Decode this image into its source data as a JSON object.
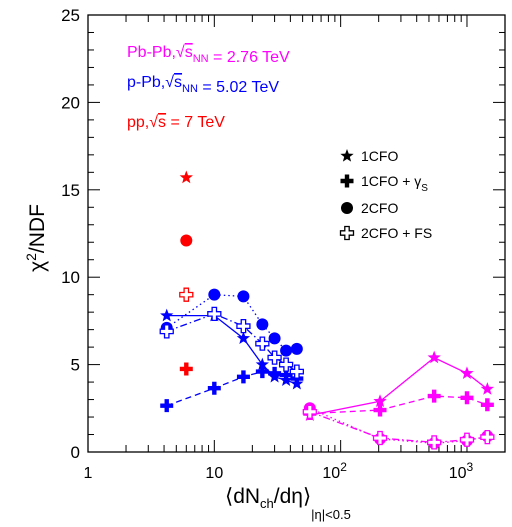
{
  "chart_data": {
    "type": "scatter",
    "xscale": "log",
    "xlim": [
      1,
      2000
    ],
    "ylim": [
      0,
      25
    ],
    "xticks": [
      {
        "value": 1,
        "label": "1"
      },
      {
        "value": 10,
        "label": "10"
      },
      {
        "value": 100,
        "label": "10",
        "exp": "2"
      },
      {
        "value": 1000,
        "label": "10",
        "exp": "3"
      }
    ],
    "yticks": [
      0,
      5,
      10,
      15,
      20,
      25
    ],
    "ylabel": {
      "main": "χ",
      "sup": "2",
      "rest": "/NDF"
    },
    "xlabel": {
      "open": "⟨dN",
      "sub1": "ch",
      "mid": "/dη⟩",
      "sub2": "|η|<0.5"
    },
    "systems": [
      {
        "key": "pbpb",
        "color": "#ff00ff",
        "text": "Pb-Pb,",
        "sqrt": "√",
        "s": "s",
        "sub": "NN",
        "energy": " = 2.76 TeV"
      },
      {
        "key": "ppb",
        "color": "#0000ff",
        "text": "p-Pb,",
        "sqrt": "√",
        "s": "s",
        "sub": "NN",
        "energy": " = 5.02 TeV"
      },
      {
        "key": "pp",
        "color": "#ff0000",
        "text": "pp,",
        "sqrt": "√",
        "s": "s",
        "sub": "",
        "energy": " = 7 TeV"
      }
    ],
    "legend": [
      {
        "marker": "star",
        "label": "1CFO",
        "sub": ""
      },
      {
        "marker": "cross",
        "label": "1CFO + γ",
        "sub": "S"
      },
      {
        "marker": "circle",
        "label": "2CFO",
        "sub": ""
      },
      {
        "marker": "opencross",
        "label": "2CFO + FS",
        "sub": ""
      }
    ],
    "series": [
      {
        "system": "pp",
        "model": "1CFO",
        "marker": "star",
        "color": "#ff0000",
        "line": "none",
        "x": [
          6.0
        ],
        "y": [
          15.7
        ]
      },
      {
        "system": "pp",
        "model": "2CFO",
        "marker": "circle",
        "color": "#ff0000",
        "line": "none",
        "x": [
          6.0
        ],
        "y": [
          12.1
        ]
      },
      {
        "system": "pp",
        "model": "2CFO + FS",
        "marker": "opencross",
        "color": "#ff0000",
        "line": "none",
        "x": [
          6.0
        ],
        "y": [
          9.0
        ]
      },
      {
        "system": "pp",
        "model": "1CFO + γS",
        "marker": "cross",
        "color": "#ff0000",
        "line": "none",
        "x": [
          6.0
        ],
        "y": [
          4.75
        ]
      },
      {
        "system": "p-Pb",
        "model": "1CFO",
        "marker": "star",
        "color": "#0000ff",
        "line": "solid",
        "x": [
          4.2,
          10.0,
          17.0,
          24.0,
          30.0,
          37.0,
          45.0
        ],
        "y": [
          7.8,
          7.8,
          6.5,
          5.0,
          4.3,
          4.1,
          3.9
        ]
      },
      {
        "system": "p-Pb",
        "model": "1CFO + γS",
        "marker": "cross",
        "color": "#0000ff",
        "line": "dashed",
        "x": [
          4.2,
          10.0,
          17.0,
          24.0,
          30.0,
          37.0,
          45.0
        ],
        "y": [
          2.65,
          3.65,
          4.3,
          4.6,
          4.5,
          4.4,
          4.2
        ]
      },
      {
        "system": "p-Pb",
        "model": "2CFO",
        "marker": "circle",
        "color": "#0000ff",
        "line": "dotted",
        "x": [
          4.2,
          10.0,
          17.0,
          24.0,
          30.0,
          37.0,
          45.0
        ],
        "y": [
          7.1,
          9.0,
          8.9,
          7.3,
          6.5,
          5.8,
          5.9
        ]
      },
      {
        "system": "p-Pb",
        "model": "2CFO + FS",
        "marker": "opencross",
        "color": "#0000ff",
        "line": "dashdot",
        "x": [
          4.2,
          10.0,
          17.0,
          24.0,
          30.0,
          37.0,
          45.0
        ],
        "y": [
          6.9,
          7.9,
          7.2,
          6.2,
          5.4,
          5.0,
          4.6
        ]
      },
      {
        "system": "Pb-Pb",
        "model": "1CFO",
        "marker": "star",
        "color": "#ff00ff",
        "line": "solid",
        "x": [
          57,
          205,
          550,
          1000,
          1450
        ],
        "y": [
          2.1,
          2.9,
          5.4,
          4.5,
          3.6
        ]
      },
      {
        "system": "Pb-Pb",
        "model": "1CFO + γS",
        "marker": "cross",
        "color": "#ff00ff",
        "line": "dashed",
        "x": [
          57,
          205,
          550,
          1000,
          1450
        ],
        "y": [
          2.2,
          2.4,
          3.2,
          3.1,
          2.7
        ]
      },
      {
        "system": "Pb-Pb",
        "model": "2CFO",
        "marker": "circle",
        "color": "#ff00ff",
        "line": "dotted",
        "x": [
          57,
          205,
          550,
          1000,
          1450
        ],
        "y": [
          2.5,
          0.75,
          0.5,
          0.65,
          0.9
        ]
      },
      {
        "system": "Pb-Pb",
        "model": "2CFO + FS",
        "marker": "opencross",
        "color": "#ff00ff",
        "line": "dashdot",
        "x": [
          57,
          205,
          550,
          1000,
          1450
        ],
        "y": [
          2.3,
          0.8,
          0.55,
          0.7,
          0.85
        ]
      }
    ]
  }
}
